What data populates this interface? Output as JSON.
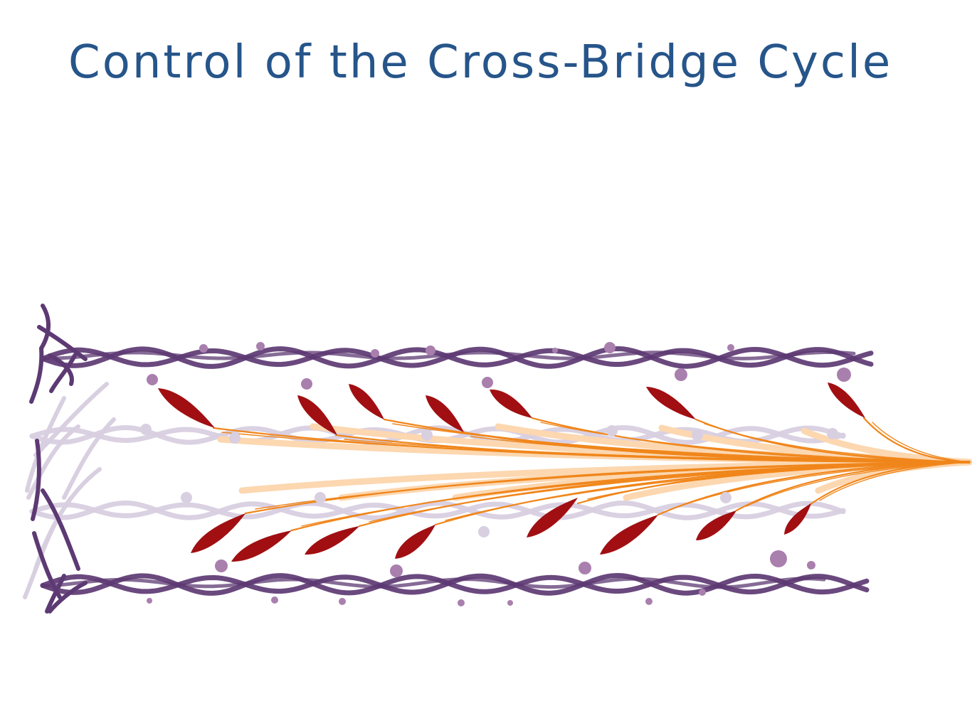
{
  "diagram": {
    "title": "Control of the Cross-Bridge Cycle",
    "colors": {
      "background": "#ffffff",
      "title_ink": "#26558a",
      "actin_dark": "#5d3a73",
      "actin_faded": "#d8cfe0",
      "tropomyosin_bead": "#a97fae",
      "myosin_head": "#a10f12",
      "myosin_tail": "#f0861b",
      "myosin_tail_faded": "#fcd7b0"
    },
    "icons": {
      "thin_filament": "twisted-actin-strand",
      "regulatory_protein": "round-bead",
      "myosin_head": "red-elongated-head",
      "myosin_tail": "orange-fiber"
    }
  }
}
